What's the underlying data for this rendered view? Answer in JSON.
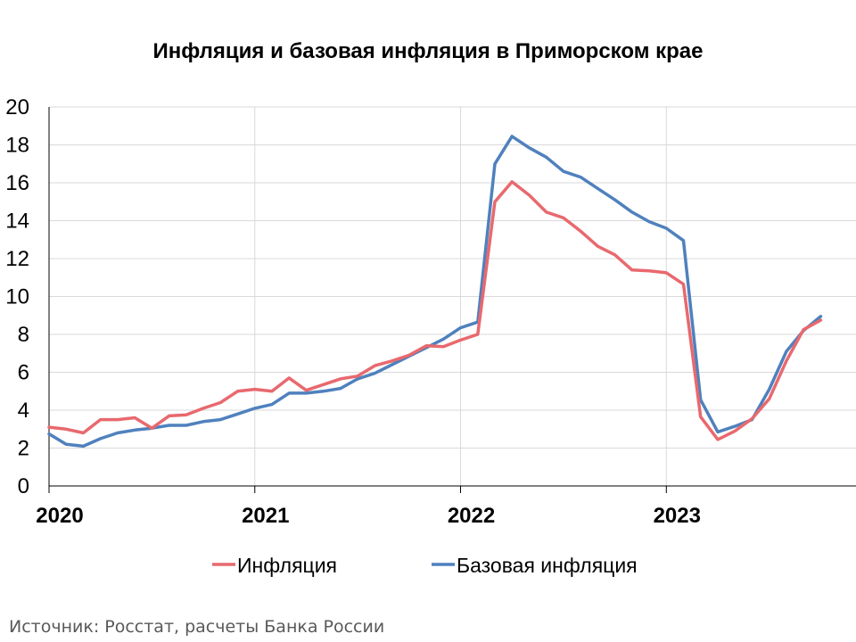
{
  "chart_data": {
    "type": "line",
    "title": "Инфляция и базовая инфляция в Приморском крае",
    "xlabel": "",
    "ylabel": "",
    "ylim": [
      0,
      20
    ],
    "yticks": [
      "0",
      "2",
      "4",
      "6",
      "8",
      "10",
      "12",
      "14",
      "16",
      "18",
      "20"
    ],
    "xticks": [
      "2020",
      "2021",
      "2022",
      "2023"
    ],
    "grid": true,
    "legend_position": "bottom",
    "start_month": "2020-01",
    "months": 46,
    "series": [
      {
        "name": "Инфляция",
        "color": "#E8696E",
        "values": [
          3.1,
          3.0,
          2.8,
          3.5,
          3.5,
          3.6,
          3.05,
          3.7,
          3.75,
          4.1,
          4.4,
          5.0,
          5.1,
          5.0,
          5.7,
          5.05,
          5.35,
          5.65,
          5.8,
          6.35,
          6.6,
          6.9,
          7.4,
          7.35,
          7.7,
          8.0,
          15.0,
          16.05,
          15.35,
          14.45,
          14.15,
          13.45,
          12.65,
          12.2,
          11.4,
          11.35,
          11.25,
          10.65,
          3.65,
          2.45,
          2.9,
          3.55,
          4.6,
          6.6,
          8.25,
          8.75
        ]
      },
      {
        "name": "Базовая инфляция",
        "color": "#4F81BD",
        "values": [
          2.75,
          2.2,
          2.1,
          2.5,
          2.8,
          2.95,
          3.05,
          3.2,
          3.2,
          3.4,
          3.5,
          3.8,
          4.1,
          4.3,
          4.9,
          4.9,
          5.0,
          5.15,
          5.65,
          5.95,
          6.4,
          6.85,
          7.3,
          7.75,
          8.35,
          8.65,
          17.0,
          18.45,
          17.85,
          17.35,
          16.6,
          16.3,
          15.7,
          15.1,
          14.45,
          13.95,
          13.6,
          12.95,
          4.55,
          2.85,
          3.15,
          3.5,
          5.1,
          7.1,
          8.2,
          8.95
        ]
      }
    ]
  },
  "source": "Источник: Росстат, расчеты Банка России"
}
